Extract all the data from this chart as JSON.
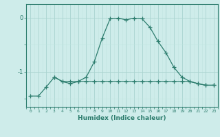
{
  "xlabel": "Humidex (Indice chaleur)",
  "x_values": [
    0,
    1,
    2,
    3,
    4,
    5,
    6,
    7,
    8,
    9,
    10,
    11,
    12,
    13,
    14,
    15,
    16,
    17,
    18,
    19,
    20,
    21,
    22,
    23
  ],
  "curve_main_y": [
    -1.45,
    -1.45,
    -1.28,
    -1.1,
    -1.18,
    -1.22,
    -1.18,
    -1.1,
    -0.82,
    -0.38,
    -0.02,
    -0.01,
    -0.04,
    -0.01,
    -0.02,
    -0.18,
    -0.44,
    -0.65,
    -0.92,
    -1.1,
    -1.18,
    -1.22,
    -1.25,
    -1.25
  ],
  "curve_flat_y": [
    null,
    null,
    null,
    -1.1,
    -1.18,
    -1.18,
    -1.18,
    -1.18,
    -1.18,
    -1.18,
    -1.18,
    -1.18,
    -1.18,
    -1.18,
    -1.18,
    -1.18,
    -1.18,
    -1.18,
    -1.18,
    -1.18,
    -1.18,
    -1.22,
    -1.25,
    -1.25
  ],
  "line_color": "#2d7d6e",
  "bg_color": "#ceecea",
  "grid_major_color": "#aad4d0",
  "grid_minor_color": "#c0e4e0",
  "tick_color": "#2d7d6e",
  "xlim": [
    -0.5,
    23.5
  ],
  "ylim": [
    -1.65,
    0.25
  ],
  "yticks": [
    0,
    -1
  ],
  "ytick_labels": [
    "0",
    "-1"
  ]
}
